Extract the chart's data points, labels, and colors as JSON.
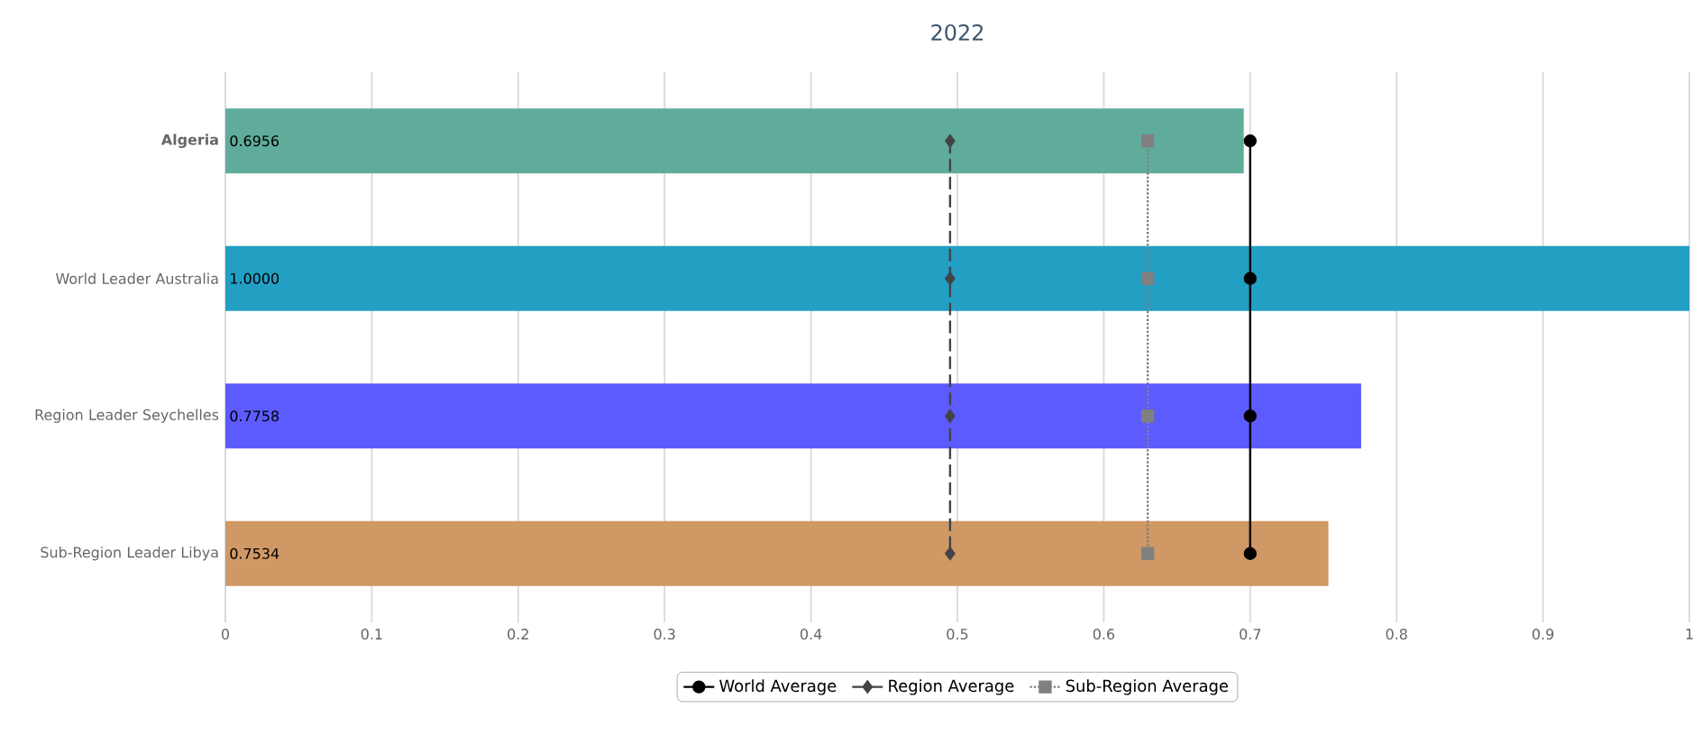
{
  "chart_data": {
    "type": "bar",
    "orientation": "horizontal",
    "title": "2022",
    "categories": [
      "**Algeria**",
      "World Leader Australia",
      "Region Leader Seychelles",
      "Sub-Region Leader Libya"
    ],
    "xlim": [
      0,
      1
    ],
    "xticks": [
      0,
      0.1,
      0.2,
      0.3,
      0.4,
      0.5,
      0.6,
      0.7,
      0.8,
      0.9,
      1
    ],
    "grid": "x",
    "legend": "bottom",
    "series": [
      {
        "colors": [
          "#5fac9a",
          "#239fc4",
          "#5c5bfe",
          "#d09865"
        ],
        "values": [
          0.6956,
          1.0,
          0.7758,
          0.7534
        ],
        "value_labels": [
          "0.6956",
          "1.0000",
          "0.7758",
          "0.7534"
        ]
      },
      {
        "type": "line",
        "name": "World Average",
        "color": "#000000",
        "marker": "circle",
        "line_style": "solid",
        "values": [
          0.7,
          0.7,
          0.7,
          0.7
        ]
      },
      {
        "type": "line",
        "name": "Region Average",
        "color": "#434348",
        "marker": "diamond",
        "line_style": "dashed",
        "values": [
          0.495,
          0.495,
          0.495,
          0.495
        ]
      },
      {
        "type": "line",
        "name": "Sub-Region Average",
        "color": "#808080",
        "marker": "square",
        "line_style": "dotted",
        "values": [
          0.63,
          0.63,
          0.63,
          0.63
        ]
      }
    ]
  }
}
